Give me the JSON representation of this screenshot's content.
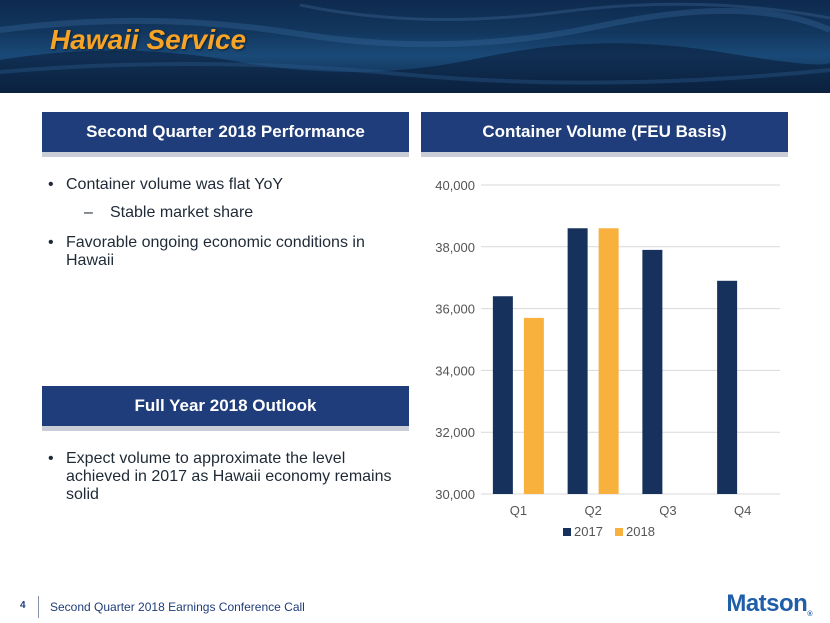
{
  "header": {
    "title": "Hawaii Service"
  },
  "left": {
    "performance": {
      "heading": "Second Quarter 2018 Performance",
      "bullets": [
        {
          "text": "Container volume was flat YoY",
          "sub": "Stable market share"
        },
        {
          "text": "Favorable ongoing economic conditions in Hawaii"
        }
      ]
    },
    "outlook": {
      "heading": "Full Year 2018 Outlook",
      "bullets": [
        {
          "text": "Expect volume to approximate the level achieved in 2017 as Hawaii economy remains solid"
        }
      ]
    }
  },
  "right": {
    "heading": "Container Volume (FEU Basis)"
  },
  "chart_data": {
    "type": "bar",
    "title": "Container Volume (FEU Basis)",
    "categories": [
      "Q1",
      "Q2",
      "Q3",
      "Q4"
    ],
    "series": [
      {
        "name": "2017",
        "values": [
          36400,
          38600,
          37900,
          36900
        ],
        "color": "#16325c"
      },
      {
        "name": "2018",
        "values": [
          35700,
          38600,
          null,
          null
        ],
        "color": "#f7b13c"
      }
    ],
    "ylim": [
      30000,
      40000
    ],
    "yticks": [
      30000,
      32000,
      34000,
      36000,
      38000,
      40000
    ],
    "ytick_labels": [
      "30,000",
      "32,000",
      "34,000",
      "36,000",
      "38,000",
      "40,000"
    ],
    "grid": true,
    "legend": "bottom"
  },
  "footer": {
    "page_number": "4",
    "text": "Second Quarter 2018 Earnings Conference Call",
    "logo": "Matson"
  }
}
